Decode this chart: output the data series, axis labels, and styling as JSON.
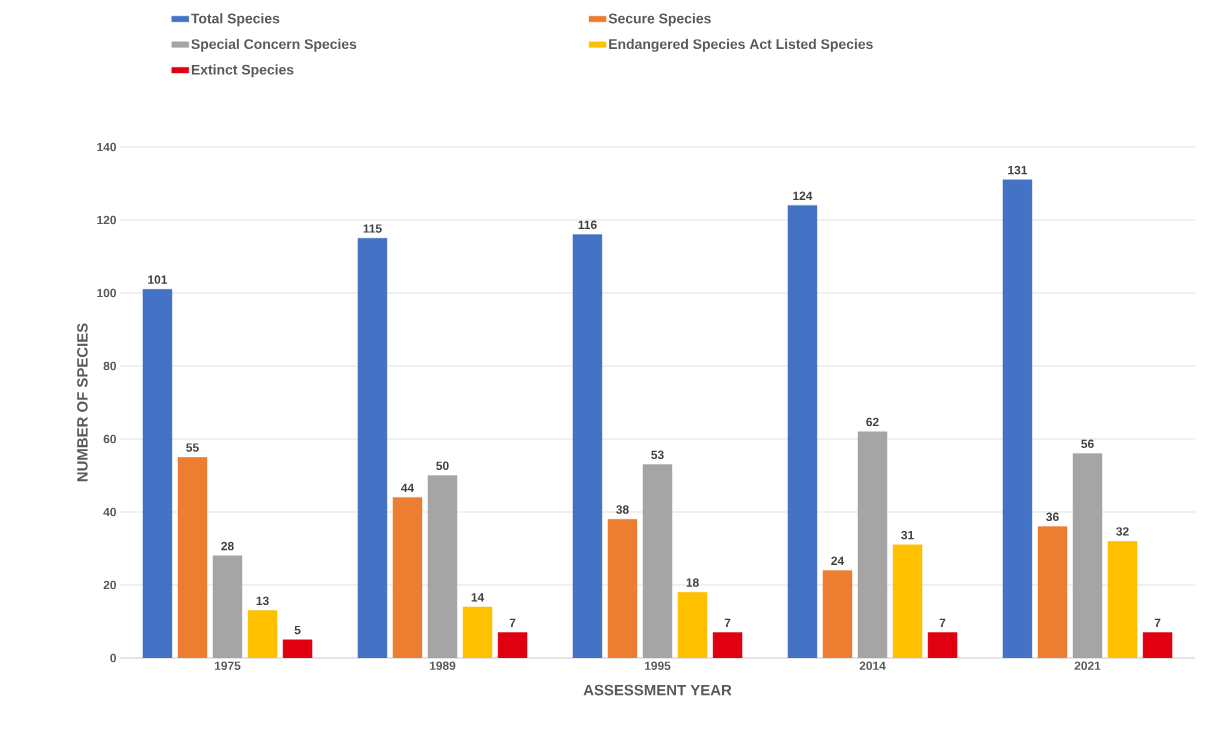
{
  "chart_data": {
    "type": "bar",
    "xlabel": "ASSESSMENT YEAR",
    "ylabel": "NUMBER OF SPECIES",
    "categories": [
      "1975",
      "1989",
      "1995",
      "2014",
      "2021"
    ],
    "series": [
      {
        "name": "Total Species",
        "color": "#4472c4",
        "values": [
          101,
          115,
          116,
          124,
          131
        ]
      },
      {
        "name": "Secure Species",
        "color": "#ed7d31",
        "values": [
          55,
          44,
          38,
          24,
          36
        ]
      },
      {
        "name": "Special Concern Species",
        "color": "#a5a5a5",
        "values": [
          28,
          50,
          53,
          62,
          56
        ]
      },
      {
        "name": "Endangered Species Act Listed Species",
        "color": "#ffc000",
        "values": [
          13,
          14,
          18,
          31,
          32
        ]
      },
      {
        "name": "Extinct Species",
        "color": "#e00010",
        "values": [
          5,
          7,
          7,
          7,
          7
        ]
      }
    ],
    "ylim": [
      0,
      140
    ],
    "yticks": [
      0,
      20,
      40,
      60,
      80,
      100,
      120,
      140
    ],
    "grid": "y",
    "legend": "top",
    "data_labels": true
  }
}
